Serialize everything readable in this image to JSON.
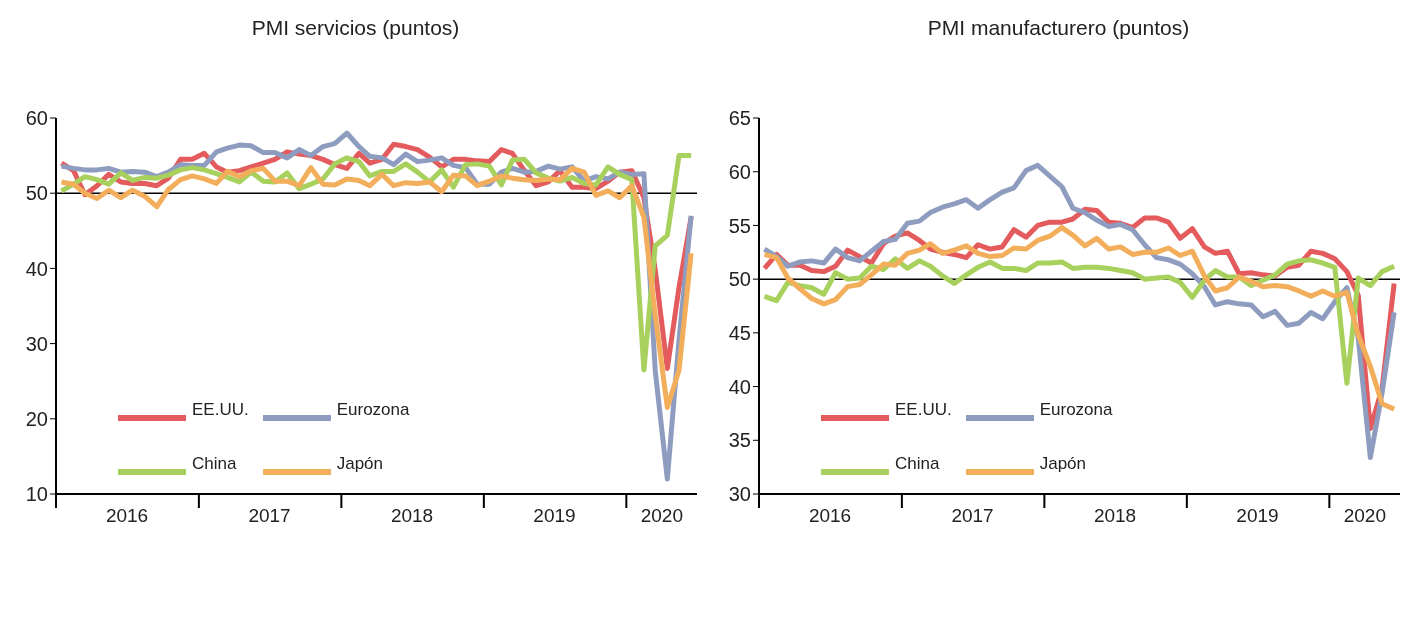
{
  "chart_data": [
    {
      "type": "line",
      "title": "PMI servicios (puntos)",
      "x": [
        "2016-01-15",
        "2016-02-15",
        "2016-03-15",
        "2016-04-15",
        "2016-05-15",
        "2016-06-15",
        "2016-07-15",
        "2016-08-15",
        "2016-09-15",
        "2016-10-15",
        "2016-11-15",
        "2016-12-15",
        "2017-01-15",
        "2017-02-15",
        "2017-03-15",
        "2017-04-15",
        "2017-05-15",
        "2017-06-15",
        "2017-07-15",
        "2017-08-15",
        "2017-09-15",
        "2017-10-15",
        "2017-11-15",
        "2017-12-15",
        "2018-01-15",
        "2018-02-15",
        "2018-03-15",
        "2018-04-15",
        "2018-05-15",
        "2018-06-15",
        "2018-07-15",
        "2018-08-15",
        "2018-09-15",
        "2018-10-15",
        "2018-11-15",
        "2018-12-15",
        "2019-01-15",
        "2019-02-15",
        "2019-03-15",
        "2019-04-15",
        "2019-05-15",
        "2019-06-15",
        "2019-07-15",
        "2019-08-15",
        "2019-09-15",
        "2019-10-15",
        "2019-11-15",
        "2019-12-15",
        "2020-01-15",
        "2020-02-15",
        "2020-03-15",
        "2020-04-15",
        "2020-05-15",
        "2020-06-15"
      ],
      "series": [
        {
          "name": "EE.UU.",
          "color": "#e35b5d",
          "values": [
            54,
            53,
            49.8,
            51,
            52.5,
            51.5,
            51.3,
            51.3,
            51,
            52,
            54.5,
            54.5,
            55.3,
            53.5,
            52.8,
            53,
            53.5,
            54,
            54.5,
            55.5,
            55.2,
            55,
            54.5,
            53.8,
            53.3,
            55.3,
            54,
            54.5,
            56.5,
            56.2,
            55.8,
            54.8,
            53.5,
            54.5,
            54.5,
            54.3,
            54.2,
            55.8,
            55.3,
            53,
            51,
            51.5,
            53,
            50.8,
            50.8,
            50.6,
            51.6,
            52.8,
            53,
            49.4,
            39.8,
            26.7,
            37.5,
            46.8
          ]
        },
        {
          "name": "Eurozona",
          "color": "#8e9dbf",
          "values": [
            53.6,
            53.3,
            53.1,
            53.1,
            53.3,
            52.8,
            52.9,
            52.8,
            52.2,
            52.8,
            53.8,
            53.7,
            53.7,
            55.5,
            56,
            56.4,
            56.3,
            55.4,
            55.4,
            54.7,
            55.8,
            55,
            56.2,
            56.6,
            58,
            56.2,
            54.9,
            54.7,
            53.8,
            55.2,
            54.2,
            54.4,
            54.7,
            53.7,
            53.4,
            51.2,
            51.2,
            52.8,
            53.3,
            52.8,
            52.9,
            53.6,
            53.2,
            53.5,
            51.6,
            52.2,
            51.9,
            52.8,
            52.5,
            52.6,
            26.4,
            12,
            30.5,
            47
          ]
        },
        {
          "name": "China",
          "color": "#a8d05c",
          "values": [
            50.3,
            51.2,
            52.2,
            51.8,
            51.2,
            52.7,
            51.7,
            52.1,
            52,
            52.4,
            53.1,
            53.4,
            53.1,
            52.6,
            52.1,
            51.5,
            52.8,
            51.6,
            51.5,
            52.7,
            50.6,
            51.2,
            51.9,
            53.9,
            54.7,
            54.2,
            52.3,
            52.9,
            52.9,
            53.9,
            52.8,
            51.5,
            53.1,
            50.8,
            53.8,
            53.9,
            53.6,
            51.1,
            54.4,
            54.5,
            52.7,
            52,
            51.6,
            52.1,
            51.3,
            51.1,
            53.5,
            52.5,
            51.8,
            26.5,
            43,
            44.4,
            55,
            55
          ]
        },
        {
          "name": "Japón",
          "color": "#f2ae5a",
          "values": [
            51.5,
            51.2,
            50,
            49.3,
            50.4,
            49.4,
            50.4,
            49.6,
            48.2,
            50.5,
            51.8,
            52.3,
            51.9,
            51.3,
            52.9,
            52.2,
            53,
            53.3,
            51.6,
            51.6,
            51,
            53.4,
            51.2,
            51.1,
            51.9,
            51.7,
            51,
            52.5,
            51,
            51.4,
            51.3,
            51.5,
            50.2,
            52.4,
            52.3,
            51,
            51.6,
            52.3,
            52,
            51.8,
            51.7,
            51.9,
            51.8,
            53.3,
            52.8,
            49.7,
            50.3,
            49.4,
            51,
            46.8,
            33.8,
            21.5,
            26.5,
            42
          ]
        }
      ],
      "xlim": [
        "2016-01-01",
        "2020-06-30"
      ],
      "xticks": [
        {
          "value": "2016-01-01",
          "label": null
        },
        {
          "value": "2016-07-01",
          "label": "2016"
        },
        {
          "value": "2017-01-01",
          "label": null
        },
        {
          "value": "2017-07-01",
          "label": "2017"
        },
        {
          "value": "2018-01-01",
          "label": null
        },
        {
          "value": "2018-07-01",
          "label": "2018"
        },
        {
          "value": "2019-01-01",
          "label": null
        },
        {
          "value": "2019-07-01",
          "label": "2019"
        },
        {
          "value": "2020-01-01",
          "label": null
        },
        {
          "value": "2020-04-01",
          "label": "2020"
        }
      ],
      "ylim": [
        10,
        60
      ],
      "yticks": [
        10,
        20,
        30,
        40,
        50,
        60
      ],
      "ref_lines": [
        {
          "axis": "y",
          "value": 50,
          "color": "#000000"
        }
      ],
      "grid": false,
      "legend": "bottom left",
      "marker": "none",
      "line_style": "solid"
    },
    {
      "type": "line",
      "title": "PMI manufacturero (puntos)",
      "x": [
        "2016-01-15",
        "2016-02-15",
        "2016-03-15",
        "2016-04-15",
        "2016-05-15",
        "2016-06-15",
        "2016-07-15",
        "2016-08-15",
        "2016-09-15",
        "2016-10-15",
        "2016-11-15",
        "2016-12-15",
        "2017-01-15",
        "2017-02-15",
        "2017-03-15",
        "2017-04-15",
        "2017-05-15",
        "2017-06-15",
        "2017-07-15",
        "2017-08-15",
        "2017-09-15",
        "2017-10-15",
        "2017-11-15",
        "2017-12-15",
        "2018-01-15",
        "2018-02-15",
        "2018-03-15",
        "2018-04-15",
        "2018-05-15",
        "2018-06-15",
        "2018-07-15",
        "2018-08-15",
        "2018-09-15",
        "2018-10-15",
        "2018-11-15",
        "2018-12-15",
        "2019-01-15",
        "2019-02-15",
        "2019-03-15",
        "2019-04-15",
        "2019-05-15",
        "2019-06-15",
        "2019-07-15",
        "2019-08-15",
        "2019-09-15",
        "2019-10-15",
        "2019-11-15",
        "2019-12-15",
        "2020-01-15",
        "2020-02-15",
        "2020-03-15",
        "2020-04-15",
        "2020-05-15",
        "2020-06-15"
      ],
      "series": [
        {
          "name": "EE.UU.",
          "color": "#e35b5d",
          "values": [
            51,
            52.3,
            51.3,
            51.3,
            50.8,
            50.7,
            51.2,
            52.7,
            52.1,
            51.5,
            53.3,
            54,
            54.3,
            53.6,
            52.8,
            52.5,
            52.3,
            52,
            53.2,
            52.8,
            53,
            54.6,
            53.9,
            55,
            55.3,
            55.3,
            55.6,
            56.5,
            56.4,
            55.3,
            55.2,
            54.8,
            55.7,
            55.7,
            55.3,
            53.8,
            54.7,
            53,
            52.4,
            52.6,
            50.5,
            50.6,
            50.4,
            50.3,
            51.1,
            51.3,
            52.6,
            52.4,
            51.9,
            50.7,
            48.5,
            36.1,
            39.8,
            49.6
          ]
        },
        {
          "name": "Eurozona",
          "color": "#8e9dbf",
          "values": [
            52.8,
            52.1,
            51.2,
            51.6,
            51.7,
            51.5,
            52.8,
            52,
            51.7,
            52.6,
            53.5,
            53.7,
            55.2,
            55.4,
            56.2,
            56.7,
            57,
            57.4,
            56.6,
            57.4,
            58.1,
            58.5,
            60.1,
            60.6,
            59.6,
            58.6,
            56.6,
            56.2,
            55.5,
            54.9,
            55.1,
            54.6,
            53.2,
            52,
            51.8,
            51.4,
            50.5,
            49.3,
            47.6,
            47.9,
            47.7,
            47.6,
            46.5,
            47,
            45.7,
            45.9,
            46.9,
            46.3,
            47.9,
            49.2,
            44.5,
            33.4,
            39.4,
            46.9
          ]
        },
        {
          "name": "China",
          "color": "#a8d05c",
          "values": [
            48.4,
            48,
            49.7,
            49.4,
            49.2,
            48.6,
            50.6,
            50,
            50.1,
            51.2,
            50.9,
            51.9,
            51,
            51.7,
            51.2,
            50.3,
            49.6,
            50.4,
            51.1,
            51.6,
            51,
            51,
            50.8,
            51.5,
            51.5,
            51.6,
            51,
            51.1,
            51.1,
            51,
            50.8,
            50.6,
            50,
            50.1,
            50.2,
            49.7,
            48.3,
            49.9,
            50.8,
            50.2,
            50.2,
            49.4,
            49.9,
            50.4,
            51.4,
            51.7,
            51.8,
            51.5,
            51.1,
            40.3,
            50.1,
            49.4,
            50.7,
            51.2
          ]
        },
        {
          "name": "Japón",
          "color": "#f2ae5a",
          "values": [
            52.3,
            52,
            50.1,
            49.1,
            48.2,
            47.7,
            48.1,
            49.3,
            49.5,
            50.4,
            51.4,
            51.3,
            52.4,
            52.7,
            53.3,
            52.4,
            52.7,
            53.1,
            52.4,
            52.1,
            52.2,
            52.9,
            52.8,
            53.6,
            54,
            54.8,
            54.1,
            53.1,
            53.8,
            52.8,
            53,
            52.3,
            52.5,
            52.5,
            52.9,
            52.2,
            52.6,
            50.3,
            48.9,
            49.2,
            50.2,
            49.8,
            49.3,
            49.4,
            49.3,
            48.9,
            48.4,
            48.9,
            48.4,
            48.8,
            44.8,
            41.9,
            38.4,
            37.9
          ]
        }
      ],
      "xlim": [
        "2016-01-01",
        "2020-06-30"
      ],
      "xticks": [
        {
          "value": "2016-01-01",
          "label": null
        },
        {
          "value": "2016-07-01",
          "label": "2016"
        },
        {
          "value": "2017-01-01",
          "label": null
        },
        {
          "value": "2017-07-01",
          "label": "2017"
        },
        {
          "value": "2018-01-01",
          "label": null
        },
        {
          "value": "2018-07-01",
          "label": "2018"
        },
        {
          "value": "2019-01-01",
          "label": null
        },
        {
          "value": "2019-07-01",
          "label": "2019"
        },
        {
          "value": "2020-01-01",
          "label": null
        },
        {
          "value": "2020-04-01",
          "label": "2020"
        }
      ],
      "ylim": [
        30,
        65
      ],
      "yticks": [
        30,
        35,
        40,
        45,
        50,
        55,
        60,
        65
      ],
      "ref_lines": [
        {
          "axis": "y",
          "value": 50,
          "color": "#000000"
        }
      ],
      "grid": false,
      "legend": "bottom left",
      "marker": "none",
      "line_style": "solid"
    }
  ]
}
